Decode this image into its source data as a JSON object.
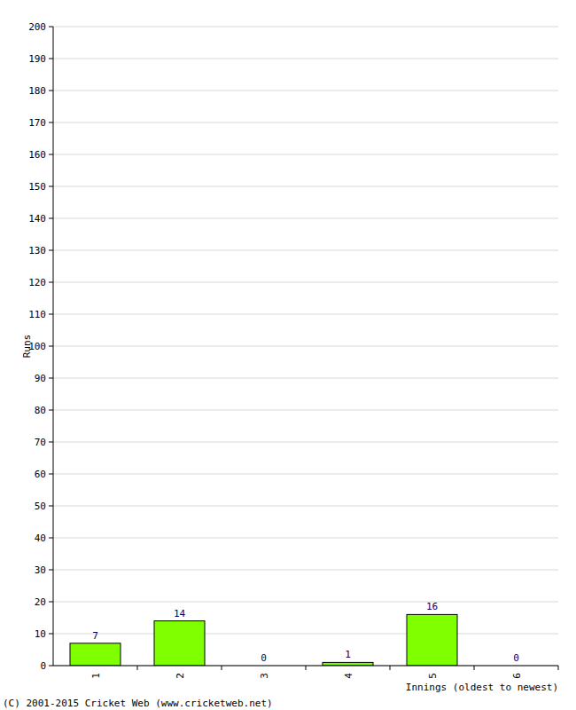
{
  "chart_data": {
    "type": "bar",
    "categories": [
      "1",
      "2",
      "3",
      "4",
      "5",
      "6"
    ],
    "values": [
      7,
      14,
      0,
      1,
      16,
      0
    ],
    "color": "#80ff00",
    "ylim": [
      0,
      200
    ],
    "yticks": [
      0,
      10,
      20,
      30,
      40,
      50,
      60,
      70,
      80,
      90,
      100,
      110,
      120,
      130,
      140,
      150,
      160,
      170,
      180,
      190,
      200
    ],
    "grid": true,
    "data_labels": true,
    "x_label": "Innings (oldest to newest)",
    "y_label": "Runs",
    "annotations": [
      "(C) 2001-2015 Cricket Web (www.cricketweb.net)"
    ]
  }
}
